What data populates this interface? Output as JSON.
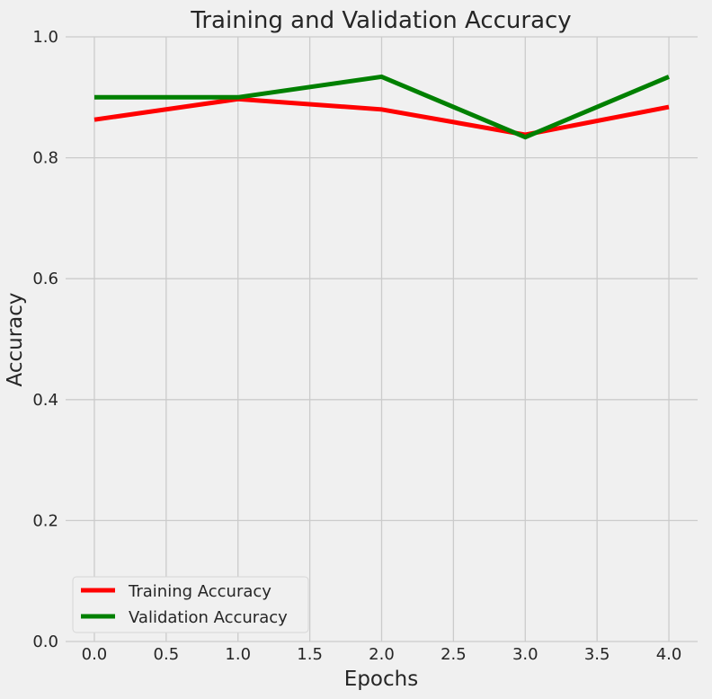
{
  "chart_data": {
    "type": "line",
    "title": "Training and Validation Accuracy",
    "xlabel": "Epochs",
    "ylabel": "Accuracy",
    "x": [
      0,
      1,
      2,
      3,
      4
    ],
    "xlim": [
      -0.2,
      4.2
    ],
    "ylim": [
      0.0,
      1.0
    ],
    "xticks": [
      0.0,
      0.5,
      1.0,
      1.5,
      2.0,
      2.5,
      3.0,
      3.5,
      4.0
    ],
    "xtick_labels": [
      "0.0",
      "0.5",
      "1.0",
      "1.5",
      "2.0",
      "2.5",
      "3.0",
      "3.5",
      "4.0"
    ],
    "yticks": [
      0.0,
      0.2,
      0.4,
      0.6,
      0.8,
      1.0
    ],
    "ytick_labels": [
      "0.0",
      "0.2",
      "0.4",
      "0.6",
      "0.8",
      "1.0"
    ],
    "grid": true,
    "legend_position": "lower-left",
    "series": [
      {
        "name": "Training Accuracy",
        "color": "#ff0000",
        "values": [
          0.863,
          0.897,
          0.88,
          0.838,
          0.884
        ]
      },
      {
        "name": "Validation Accuracy",
        "color": "#008000",
        "values": [
          0.9,
          0.9,
          0.934,
          0.834,
          0.934
        ]
      }
    ]
  }
}
